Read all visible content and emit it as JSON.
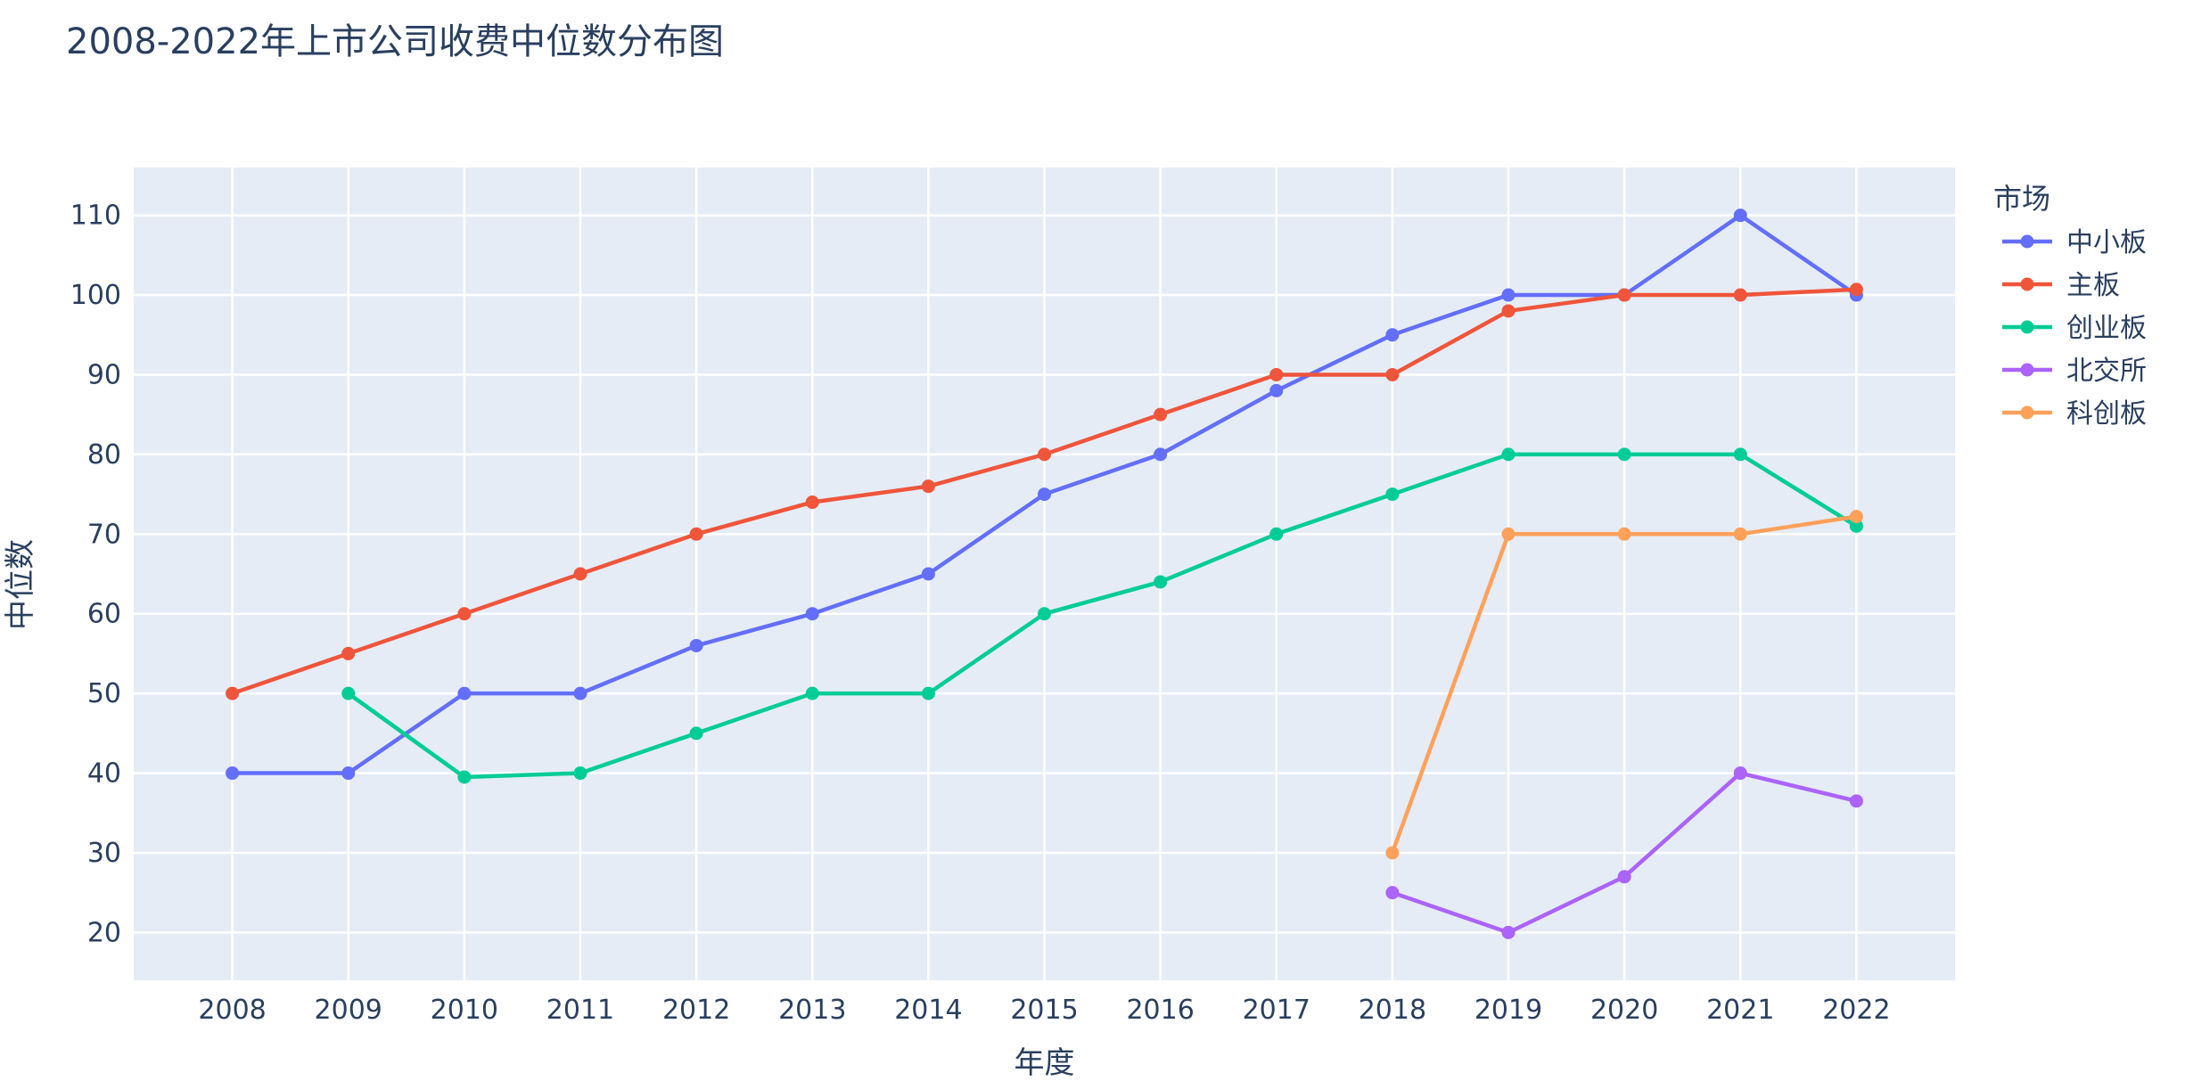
{
  "chart_data": {
    "type": "line",
    "title": "2008-2022年上市公司收费中位数分布图",
    "xlabel": "年度",
    "ylabel": "中位数",
    "x": [
      2008,
      2009,
      2010,
      2011,
      2012,
      2013,
      2014,
      2015,
      2016,
      2017,
      2018,
      2019,
      2020,
      2021,
      2022
    ],
    "xlim": [
      2007.15,
      2022.85
    ],
    "ylim": [
      14,
      116
    ],
    "yticks": [
      20,
      30,
      40,
      50,
      60,
      70,
      80,
      90,
      100,
      110
    ],
    "grid": true,
    "legend": {
      "title": "市场",
      "placement": "right"
    },
    "series": [
      {
        "name": "中小板",
        "color": "#636efa",
        "x": [
          2008,
          2009,
          2010,
          2011,
          2012,
          2013,
          2014,
          2015,
          2016,
          2017,
          2018,
          2019,
          2020,
          2021,
          2022
        ],
        "values": [
          40,
          40,
          50,
          50,
          56,
          60,
          65,
          75,
          80,
          88,
          95,
          100,
          100,
          110,
          100
        ]
      },
      {
        "name": "主板",
        "color": "#ef553b",
        "x": [
          2008,
          2009,
          2010,
          2011,
          2012,
          2013,
          2014,
          2015,
          2016,
          2017,
          2018,
          2019,
          2020,
          2021,
          2022
        ],
        "values": [
          50,
          55,
          60,
          65,
          70,
          74,
          76,
          80,
          85,
          90,
          90,
          98,
          100,
          100,
          100.7
        ]
      },
      {
        "name": "创业板",
        "color": "#00cc96",
        "x": [
          2009,
          2010,
          2011,
          2012,
          2013,
          2014,
          2015,
          2016,
          2017,
          2018,
          2019,
          2020,
          2021,
          2022
        ],
        "values": [
          50,
          39.5,
          40,
          45,
          50,
          50,
          60,
          64,
          70,
          75,
          80,
          80,
          80,
          71
        ]
      },
      {
        "name": "北交所",
        "color": "#ab63fa",
        "x": [
          2018,
          2019,
          2020,
          2021,
          2022
        ],
        "values": [
          25,
          20,
          27,
          40,
          36.5
        ]
      },
      {
        "name": "科创板",
        "color": "#ffa15a",
        "x": [
          2018,
          2019,
          2020,
          2021,
          2022
        ],
        "values": [
          30,
          70,
          70,
          70,
          72.2
        ]
      }
    ]
  }
}
